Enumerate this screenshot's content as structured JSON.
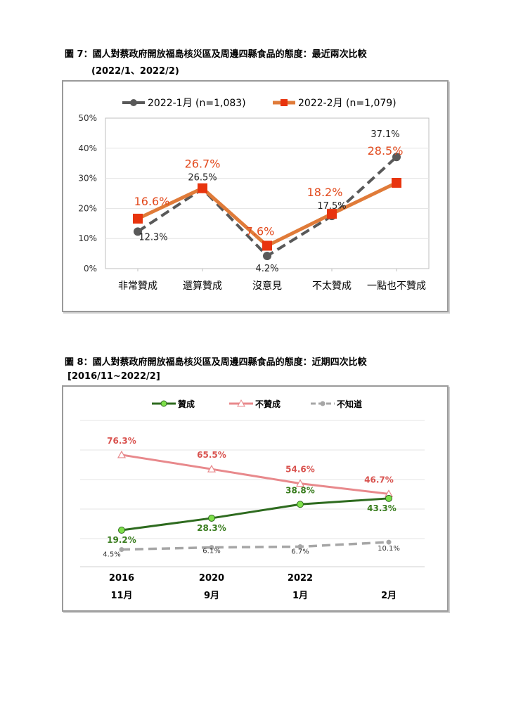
{
  "figure7": {
    "caption": "圖 7：國人對蔡政府開放福島核災區及周邊四縣食品的態度：最近兩次比較",
    "caption_sub": "(2022/1、2022/2)"
  },
  "figure8": {
    "caption": "圖 8：國人對蔡政府開放福島核災區及周邊四縣食品的態度：近期四次比較",
    "caption_sub": "[2016/11~2022/2]"
  },
  "chart_data": [
    {
      "type": "line",
      "categories": [
        "非常贊成",
        "還算贊成",
        "沒意見",
        "不太贊成",
        "一點也不贊成"
      ],
      "y_ticks": [
        "0%",
        "10%",
        "20%",
        "30%",
        "40%",
        "50%"
      ],
      "ylim": [
        0,
        50
      ],
      "grid": true,
      "legend_position": "top",
      "series": [
        {
          "name": "2022-1月 (n=1,083)",
          "values": [
            12.3,
            26.5,
            4.2,
            17.5,
            37.1
          ],
          "labels": [
            "12.3%",
            "26.5%",
            "4.2%",
            "17.5%",
            "37.1%"
          ],
          "color": "#595959",
          "style": "dashed",
          "marker": "circle"
        },
        {
          "name": "2022-2月 (n=1,079)",
          "values": [
            16.6,
            26.7,
            7.6,
            18.2,
            28.5
          ],
          "labels": [
            "16.6%",
            "26.7%",
            "7.6%",
            "18.2%",
            "28.5%"
          ],
          "color": "#e07b39",
          "label_color": "#e2491c",
          "marker_color": "#e8340e",
          "style": "solid",
          "marker": "square"
        }
      ]
    },
    {
      "type": "line",
      "categories": [
        "2016 11月",
        "2020 9月",
        "2022 1月",
        "2月"
      ],
      "x_tick_years": [
        "2016",
        "2020",
        "2022",
        ""
      ],
      "x_tick_months": [
        "11月",
        "9月",
        "1月",
        "2月"
      ],
      "grid": true,
      "legend_position": "top",
      "series": [
        {
          "name": "贊成",
          "values": [
            19.2,
            28.3,
            38.8,
            43.3
          ],
          "labels": [
            "19.2%",
            "28.3%",
            "38.8%",
            "43.3%"
          ],
          "color": "#2e6b1f",
          "label_color": "#3a7d1f",
          "marker_color": "#7ee04a",
          "style": "solid",
          "marker": "circle"
        },
        {
          "name": "不贊成",
          "values": [
            76.3,
            65.5,
            54.6,
            46.7
          ],
          "labels": [
            "76.3%",
            "65.5%",
            "54.6%",
            "46.7%"
          ],
          "color": "#e8898c",
          "label_color": "#d9534f",
          "style": "solid",
          "marker": "triangle"
        },
        {
          "name": "不知道",
          "values": [
            4.5,
            6.1,
            6.7,
            10.1
          ],
          "labels": [
            "4.5%",
            "6.1%",
            "6.7%",
            "10.1%"
          ],
          "color": "#a6a6a6",
          "label_color": "#333333",
          "style": "dashed",
          "marker": "circle"
        }
      ]
    }
  ]
}
